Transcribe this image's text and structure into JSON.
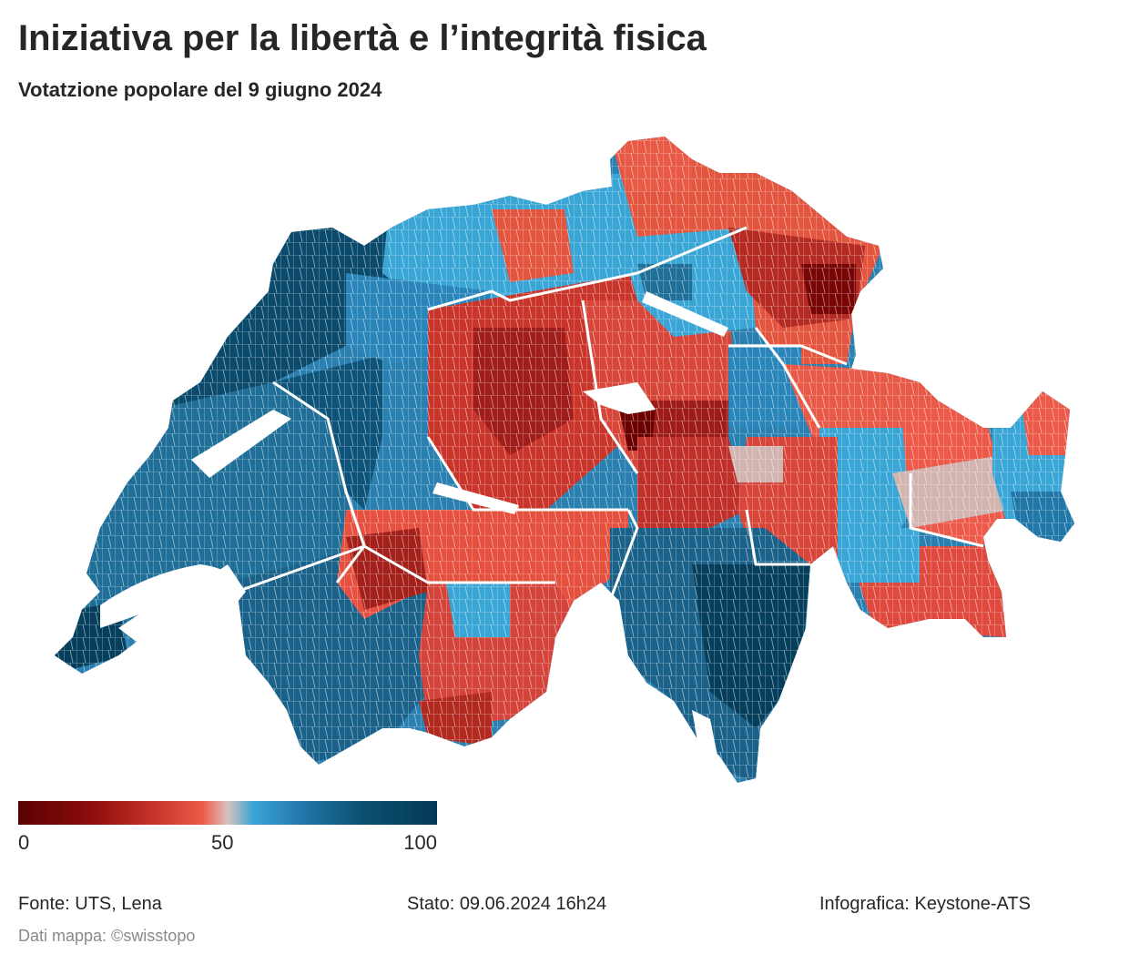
{
  "header": {
    "title": "Iniziativa per la libertà e l’integrità fisica",
    "subtitle": "Votatzione popolare del 9 giugno 2024"
  },
  "map": {
    "region": "Switzerland",
    "unit": "municipalities",
    "description_colors": {
      "no_strong": "#6b0000",
      "no_mid": "#c0392b",
      "no_light": "#f0604d",
      "neutral": "#d2b5b0",
      "yes_light": "#3aa6d6",
      "yes_mid": "#2a80b0",
      "yes_strong": "#063f5c"
    }
  },
  "legend": {
    "min_label": "0",
    "mid_label": "50",
    "max_label": "100",
    "gradient": [
      "#5a0000",
      "#8f0d0d",
      "#c9352a",
      "#ee5a49",
      "#d9c2bd",
      "#3ba4d6",
      "#2177a8",
      "#0b4f72",
      "#053a56"
    ]
  },
  "footer": {
    "source": "Fonte: UTS, Lena",
    "status": "Stato: 09.06.2024 16h24",
    "credit": "Infografica: Keystone-ATS",
    "map_data": "Dati mappa: ©swisstopo"
  }
}
